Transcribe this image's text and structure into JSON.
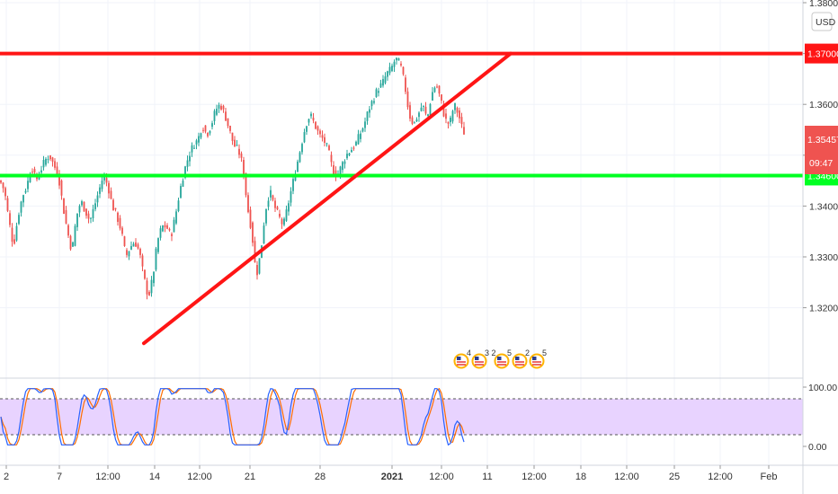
{
  "chart_data": {
    "type": "candlestick",
    "instrument_currency": "USD",
    "price_axis": {
      "ticks": [
        "1.38000",
        "1.37000",
        "1.36000",
        "1.35000",
        "1.34000",
        "1.33000",
        "1.32000"
      ],
      "ylim": [
        1.3103,
        1.38
      ]
    },
    "time_axis": {
      "ticks": [
        {
          "label": "2",
          "bold": false
        },
        {
          "label": "7",
          "bold": false
        },
        {
          "label": "12:00",
          "bold": false
        },
        {
          "label": "14",
          "bold": false
        },
        {
          "label": "12:00",
          "bold": false
        },
        {
          "label": "21",
          "bold": false
        },
        {
          "label": "28",
          "bold": false
        },
        {
          "label": "2021",
          "bold": true
        },
        {
          "label": "12:00",
          "bold": false
        },
        {
          "label": "11",
          "bold": false
        },
        {
          "label": "12:00",
          "bold": false
        },
        {
          "label": "18",
          "bold": false
        },
        {
          "label": "12:00",
          "bold": false
        },
        {
          "label": "25",
          "bold": false
        },
        {
          "label": "12:00",
          "bold": false
        },
        {
          "label": "Feb",
          "bold": false
        }
      ]
    },
    "price_path": [
      [
        0,
        1.345
      ],
      [
        5,
        1.343
      ],
      [
        10,
        1.337
      ],
      [
        15,
        1.332
      ],
      [
        20,
        1.338
      ],
      [
        25,
        1.342
      ],
      [
        30,
        1.344
      ],
      [
        35,
        1.348
      ],
      [
        40,
        1.345
      ],
      [
        45,
        1.347
      ],
      [
        50,
        1.349
      ],
      [
        55,
        1.35
      ],
      [
        60,
        1.348
      ],
      [
        65,
        1.346
      ],
      [
        70,
        1.34
      ],
      [
        75,
        1.335
      ],
      [
        80,
        1.331
      ],
      [
        85,
        1.338
      ],
      [
        90,
        1.341
      ],
      [
        95,
        1.339
      ],
      [
        100,
        1.337
      ],
      [
        105,
        1.34
      ],
      [
        110,
        1.343
      ],
      [
        115,
        1.346
      ],
      [
        120,
        1.344
      ],
      [
        125,
        1.34
      ],
      [
        130,
        1.338
      ],
      [
        135,
        1.335
      ],
      [
        140,
        1.33
      ],
      [
        145,
        1.332
      ],
      [
        150,
        1.333
      ],
      [
        155,
        1.331
      ],
      [
        160,
        1.326
      ],
      [
        165,
        1.322
      ],
      [
        170,
        1.326
      ],
      [
        175,
        1.333
      ],
      [
        180,
        1.336
      ],
      [
        185,
        1.336
      ],
      [
        190,
        1.334
      ],
      [
        195,
        1.338
      ],
      [
        200,
        1.343
      ],
      [
        205,
        1.347
      ],
      [
        210,
        1.35
      ],
      [
        215,
        1.352
      ],
      [
        220,
        1.353
      ],
      [
        225,
        1.356
      ],
      [
        230,
        1.354
      ],
      [
        235,
        1.356
      ],
      [
        240,
        1.359
      ],
      [
        245,
        1.36
      ],
      [
        250,
        1.358
      ],
      [
        255,
        1.355
      ],
      [
        260,
        1.352
      ],
      [
        265,
        1.351
      ],
      [
        270,
        1.348
      ],
      [
        275,
        1.34
      ],
      [
        280,
        1.335
      ],
      [
        285,
        1.326
      ],
      [
        290,
        1.331
      ],
      [
        295,
        1.339
      ],
      [
        300,
        1.343
      ],
      [
        305,
        1.34
      ],
      [
        310,
        1.338
      ],
      [
        315,
        1.336
      ],
      [
        320,
        1.34
      ],
      [
        325,
        1.344
      ],
      [
        330,
        1.348
      ],
      [
        335,
        1.352
      ],
      [
        340,
        1.356
      ],
      [
        345,
        1.358
      ],
      [
        350,
        1.356
      ],
      [
        355,
        1.354
      ],
      [
        360,
        1.353
      ],
      [
        365,
        1.351
      ],
      [
        370,
        1.347
      ],
      [
        375,
        1.346
      ],
      [
        380,
        1.348
      ],
      [
        385,
        1.35
      ],
      [
        390,
        1.351
      ],
      [
        395,
        1.352
      ],
      [
        400,
        1.354
      ],
      [
        405,
        1.356
      ],
      [
        410,
        1.359
      ],
      [
        415,
        1.361
      ],
      [
        420,
        1.363
      ],
      [
        425,
        1.364
      ],
      [
        430,
        1.366
      ],
      [
        435,
        1.367
      ],
      [
        440,
        1.369
      ],
      [
        445,
        1.368
      ],
      [
        450,
        1.364
      ],
      [
        455,
        1.358
      ],
      [
        460,
        1.356
      ],
      [
        465,
        1.358
      ],
      [
        470,
        1.36
      ],
      [
        475,
        1.357
      ],
      [
        480,
        1.362
      ],
      [
        485,
        1.364
      ],
      [
        490,
        1.361
      ],
      [
        495,
        1.357
      ],
      [
        500,
        1.356
      ],
      [
        505,
        1.36
      ],
      [
        510,
        1.358
      ],
      [
        515,
        1.3545
      ]
    ],
    "horizontal_levels": [
      {
        "price": 1.37,
        "label": "1.37000",
        "color": "#ff1515"
      },
      {
        "price": 1.346,
        "label": "1.34600",
        "color": "#00ff22"
      }
    ],
    "current_price": {
      "label": "1.35457",
      "countdown": "09:47",
      "color": "#ef5350"
    },
    "trendline": {
      "start": {
        "bar": 160,
        "price": 1.313
      },
      "end": {
        "bar": 568,
        "price": 1.37
      },
      "color": "#ff1515"
    },
    "economic_events": [
      {
        "bar": 513,
        "count": "4"
      },
      {
        "bar": 533,
        "count": "3 2"
      },
      {
        "bar": 558,
        "count": "5"
      },
      {
        "bar": 578,
        "count": "2"
      },
      {
        "bar": 597,
        "count": "5"
      }
    ],
    "oscillator": {
      "axis_ticks": [
        "100.00",
        "0.00"
      ],
      "ylim": [
        0,
        100
      ],
      "upper_band": 80,
      "lower_band": 20,
      "band_fill": "#e8d3ff",
      "k_color": "#2962ff",
      "d_color": "#ff6d00"
    },
    "colors": {
      "up": "#26a69a",
      "down": "#ef5350"
    }
  }
}
